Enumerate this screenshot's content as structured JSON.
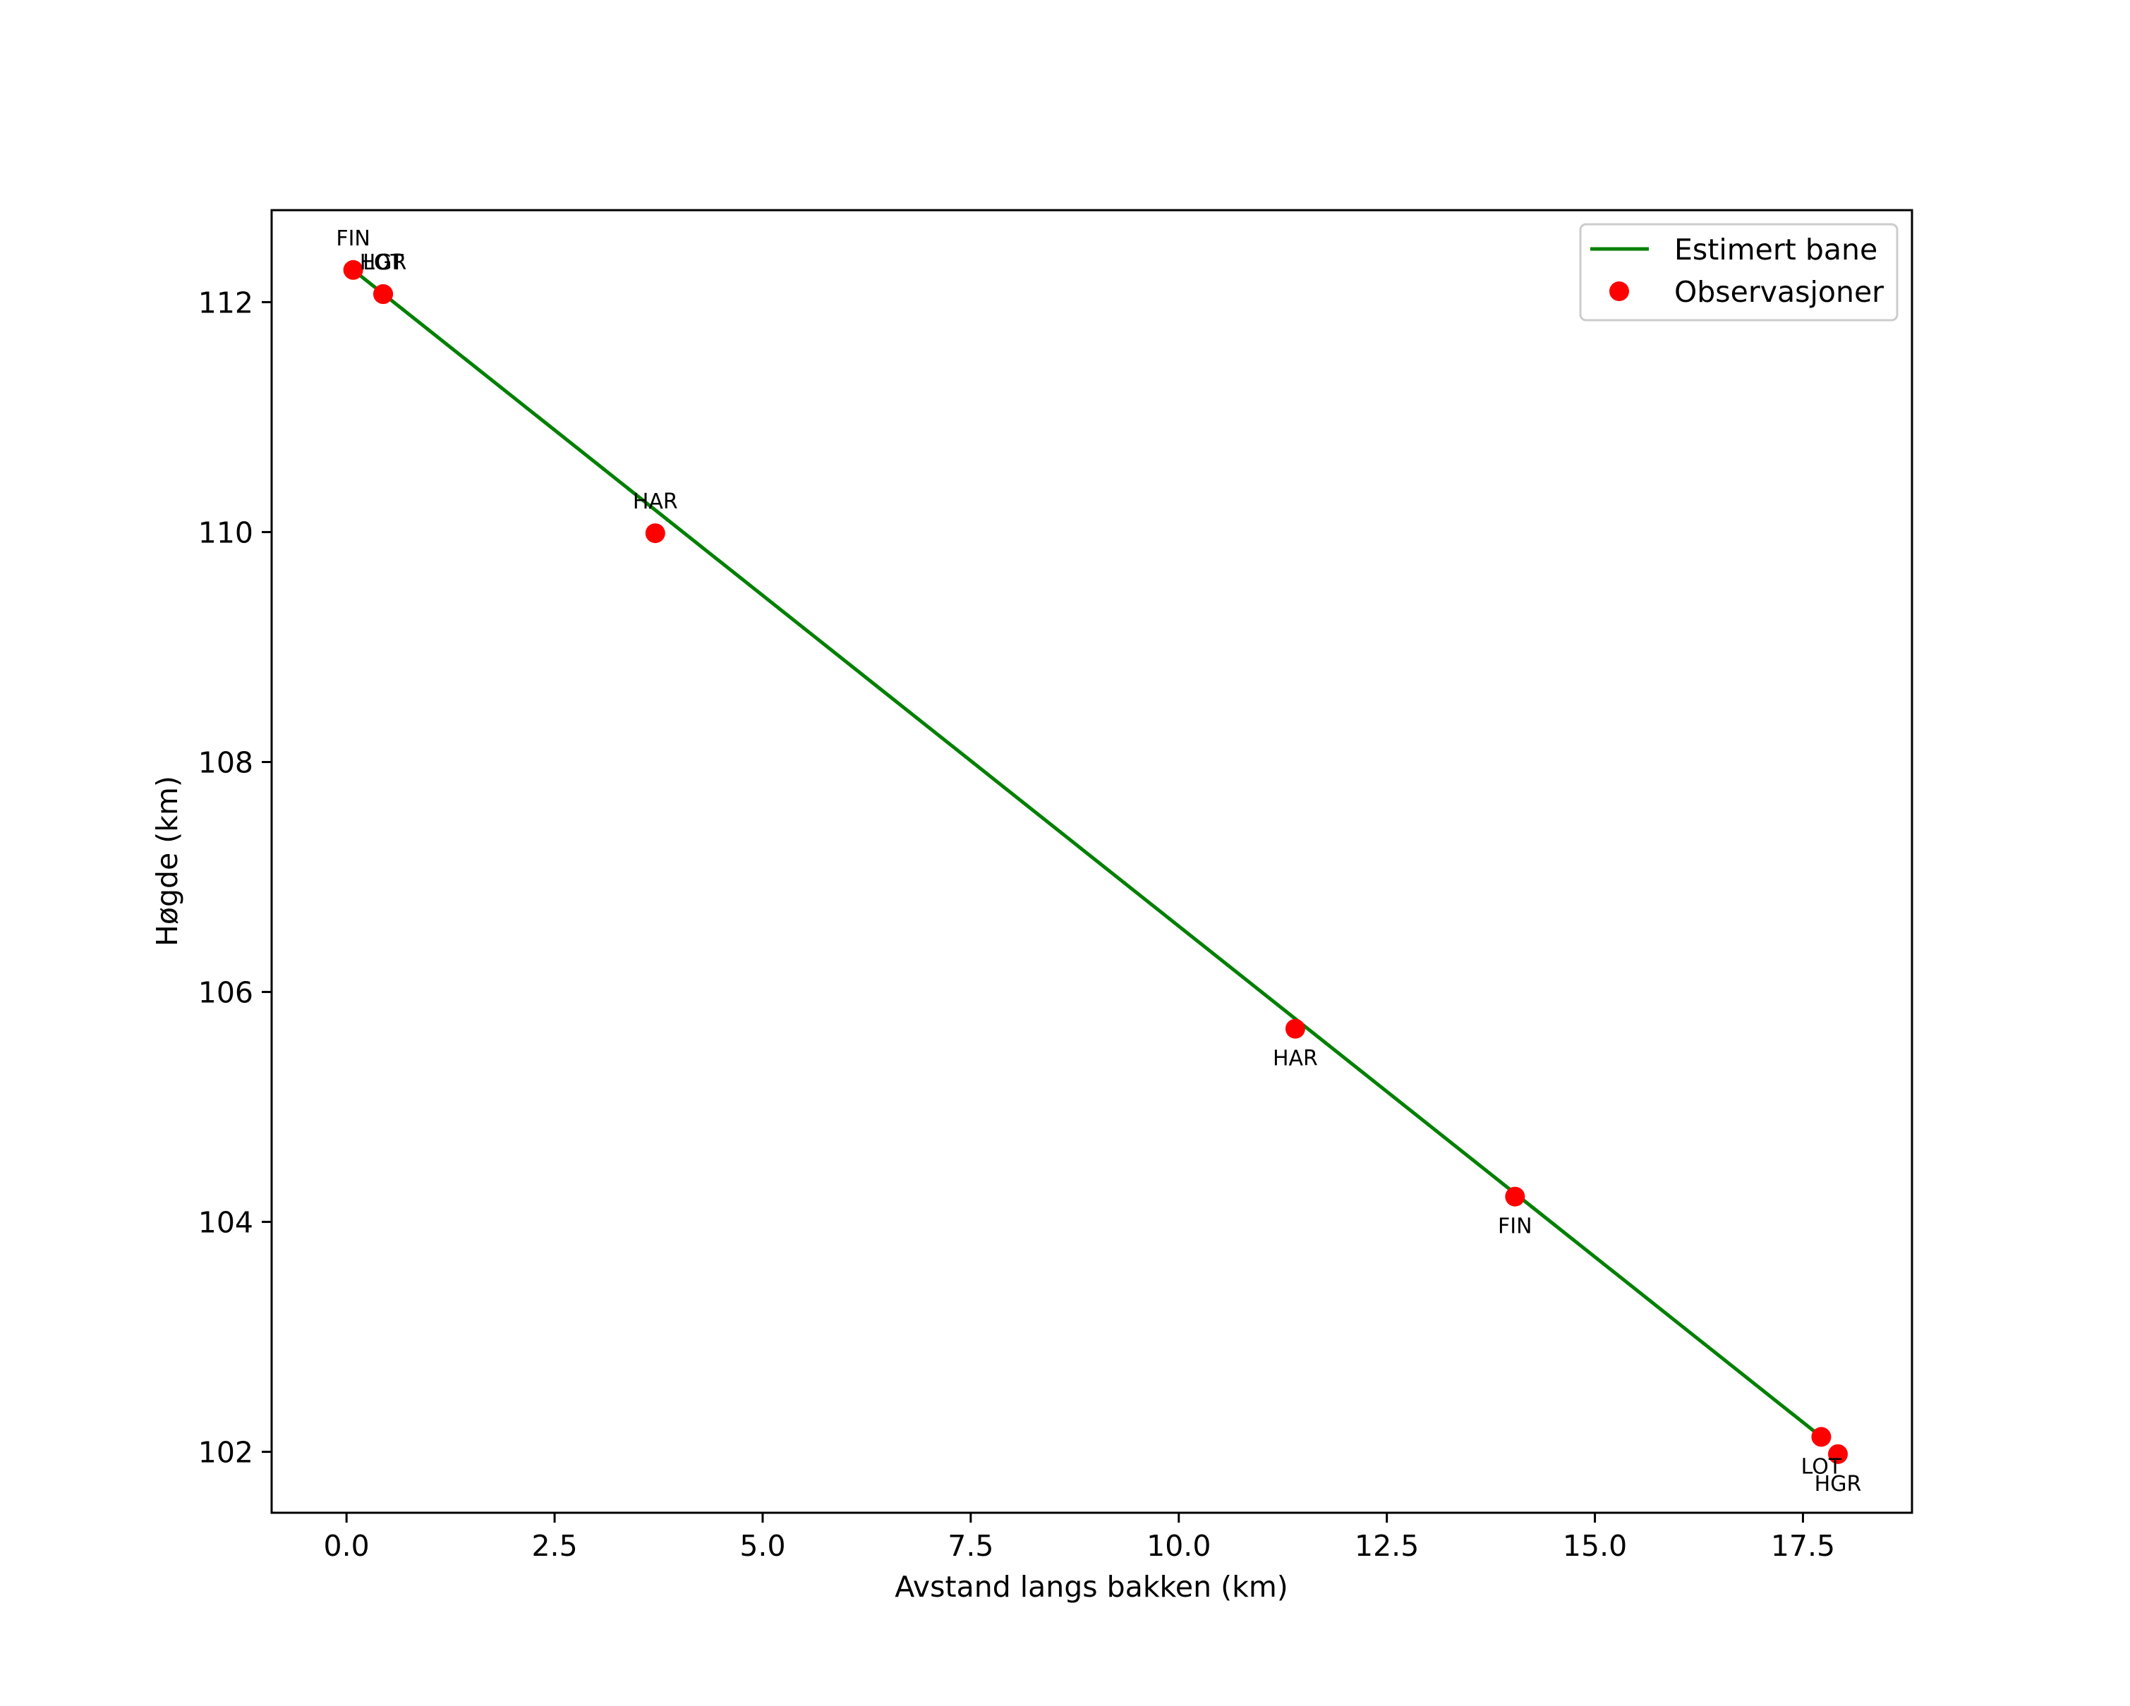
{
  "chart_data": {
    "type": "line",
    "title": "",
    "xlabel": "Avstand langs bakken (km)",
    "ylabel": "Høgde (km)",
    "xlim": [
      -0.9,
      18.81
    ],
    "ylim": [
      101.47,
      112.8
    ],
    "grid": false,
    "legend_position": "upper right",
    "xticks": [
      0.0,
      2.5,
      5.0,
      7.5,
      10.0,
      12.5,
      15.0,
      17.5
    ],
    "xtick_labels": [
      "0.0",
      "2.5",
      "5.0",
      "7.5",
      "10.0",
      "12.5",
      "15.0",
      "17.5"
    ],
    "yticks": [
      102,
      104,
      106,
      108,
      110,
      112
    ],
    "ytick_labels": [
      "102",
      "104",
      "106",
      "108",
      "110",
      "112"
    ],
    "series": [
      {
        "name": "Estimert bane",
        "type": "line",
        "color": "#008000",
        "x": [
          0.08,
          17.72
        ],
        "y": [
          112.28,
          102.13
        ]
      },
      {
        "name": "Observasjoner",
        "type": "scatter",
        "color": "#ff0000",
        "points": [
          {
            "label": "FIN",
            "x": 0.08,
            "y": 112.28,
            "label_pos": "above"
          },
          {
            "label": "LOT",
            "x": 0.44,
            "y": 112.07,
            "label_pos": "above"
          },
          {
            "label": "HGR",
            "x": 0.44,
            "y": 112.07,
            "label_pos": "above"
          },
          {
            "label": "HAR",
            "x": 3.71,
            "y": 109.99,
            "label_pos": "above"
          },
          {
            "label": "HAR",
            "x": 11.4,
            "y": 105.68,
            "label_pos": "below"
          },
          {
            "label": "FIN",
            "x": 14.04,
            "y": 104.22,
            "label_pos": "below"
          },
          {
            "label": "LOT",
            "x": 17.72,
            "y": 102.13,
            "label_pos": "below"
          },
          {
            "label": "HGR",
            "x": 17.92,
            "y": 101.98,
            "label_pos": "below2"
          }
        ]
      }
    ]
  },
  "legend": {
    "items": [
      {
        "label": "Estimert bane",
        "marker": "line",
        "color": "#008000"
      },
      {
        "label": "Observasjoner",
        "marker": "dot",
        "color": "#ff0000"
      }
    ]
  }
}
